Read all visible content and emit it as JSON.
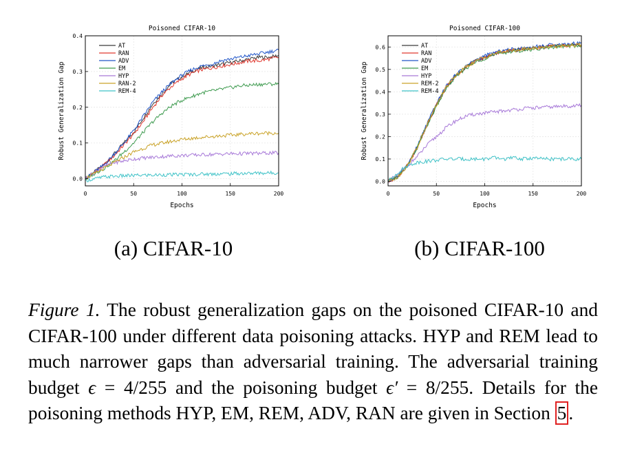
{
  "figure": {
    "subcaption_a": "(a) CIFAR-10",
    "subcaption_b": "(b) CIFAR-100",
    "caption_label": "Figure 1.",
    "caption_text_1": " The robust generalization gaps on the poisoned CIFAR-10 and CIFAR-100 under different data poisoning attacks. HYP and REM lead to much narrower gaps than adversarial training. The adversarial training budget ",
    "eps1": "ϵ",
    "eq1": " = 4/255",
    "caption_text_2": " and the poisoning budget ",
    "eps2": "ϵ′",
    "eq2": " = 8/255",
    "caption_text_3": ". Details for the poisoning methods HYP, EM, REM, ADV, RAN are given in Section ",
    "section_ref": "5",
    "caption_end": "."
  },
  "chart_data": [
    {
      "type": "line",
      "title": "Poisoned CIFAR-10",
      "xlabel": "Epochs",
      "ylabel": "Robust Generalization Gap",
      "xlim": [
        0,
        200
      ],
      "ylim": [
        -0.02,
        0.4
      ],
      "xticks": [
        0,
        50,
        100,
        150,
        200
      ],
      "yticks": [
        0.0,
        0.1,
        0.2,
        0.3,
        0.4
      ],
      "ytick_labels": [
        "0.0",
        "0.1",
        "0.2",
        "0.3",
        "0.4"
      ],
      "grid": true,
      "legend_position": "top-left",
      "series": [
        {
          "name": "AT",
          "color": "#3a3a3a",
          "x": [
            0,
            10,
            20,
            30,
            40,
            50,
            60,
            70,
            80,
            90,
            100,
            110,
            120,
            130,
            140,
            150,
            160,
            170,
            180,
            190,
            200
          ],
          "y": [
            0.0,
            0.02,
            0.04,
            0.07,
            0.1,
            0.13,
            0.17,
            0.21,
            0.24,
            0.27,
            0.285,
            0.3,
            0.31,
            0.315,
            0.32,
            0.325,
            0.33,
            0.335,
            0.34,
            0.34,
            0.345
          ]
        },
        {
          "name": "RAN",
          "color": "#e0382f",
          "x": [
            0,
            10,
            20,
            30,
            40,
            50,
            60,
            70,
            80,
            90,
            100,
            110,
            120,
            130,
            140,
            150,
            160,
            170,
            180,
            190,
            200
          ],
          "y": [
            0.0,
            0.02,
            0.04,
            0.065,
            0.095,
            0.125,
            0.16,
            0.2,
            0.235,
            0.26,
            0.28,
            0.295,
            0.305,
            0.31,
            0.315,
            0.32,
            0.325,
            0.33,
            0.33,
            0.335,
            0.34
          ]
        },
        {
          "name": "ADV",
          "color": "#2055c8",
          "x": [
            0,
            10,
            20,
            30,
            40,
            50,
            60,
            70,
            80,
            90,
            100,
            110,
            120,
            130,
            140,
            150,
            160,
            170,
            180,
            190,
            200
          ],
          "y": [
            0.0,
            0.02,
            0.04,
            0.07,
            0.1,
            0.135,
            0.175,
            0.215,
            0.245,
            0.27,
            0.29,
            0.305,
            0.315,
            0.32,
            0.33,
            0.335,
            0.34,
            0.345,
            0.35,
            0.355,
            0.36
          ]
        },
        {
          "name": "EM",
          "color": "#3d9a4e",
          "x": [
            0,
            10,
            20,
            30,
            40,
            50,
            60,
            70,
            80,
            90,
            100,
            110,
            120,
            130,
            140,
            150,
            160,
            170,
            180,
            190,
            200
          ],
          "y": [
            0.0,
            0.015,
            0.03,
            0.05,
            0.075,
            0.1,
            0.13,
            0.16,
            0.185,
            0.205,
            0.22,
            0.23,
            0.24,
            0.245,
            0.25,
            0.255,
            0.26,
            0.262,
            0.264,
            0.265,
            0.265
          ]
        },
        {
          "name": "HYP",
          "color": "#a778d8",
          "x": [
            0,
            10,
            20,
            30,
            40,
            50,
            60,
            70,
            80,
            90,
            100,
            110,
            120,
            130,
            140,
            150,
            160,
            170,
            180,
            190,
            200
          ],
          "y": [
            0.0,
            0.02,
            0.035,
            0.045,
            0.05,
            0.055,
            0.058,
            0.06,
            0.062,
            0.064,
            0.065,
            0.066,
            0.067,
            0.068,
            0.069,
            0.07,
            0.07,
            0.071,
            0.071,
            0.072,
            0.072
          ]
        },
        {
          "name": "RAN-2",
          "color": "#c9a227",
          "x": [
            0,
            10,
            20,
            30,
            40,
            50,
            60,
            70,
            80,
            90,
            100,
            110,
            120,
            130,
            140,
            150,
            160,
            170,
            180,
            190,
            200
          ],
          "y": [
            0.0,
            0.015,
            0.03,
            0.045,
            0.06,
            0.075,
            0.085,
            0.095,
            0.1,
            0.105,
            0.11,
            0.113,
            0.116,
            0.118,
            0.12,
            0.122,
            0.124,
            0.126,
            0.127,
            0.128,
            0.128
          ]
        },
        {
          "name": "REM-4",
          "color": "#3fc2c7",
          "x": [
            0,
            10,
            20,
            30,
            40,
            50,
            60,
            70,
            80,
            90,
            100,
            110,
            120,
            130,
            140,
            150,
            160,
            170,
            180,
            190,
            200
          ],
          "y": [
            -0.005,
            0.0,
            0.005,
            0.007,
            0.008,
            0.009,
            0.01,
            0.01,
            0.011,
            0.011,
            0.012,
            0.012,
            0.013,
            0.013,
            0.014,
            0.014,
            0.015,
            0.015,
            0.016,
            0.016,
            0.017
          ]
        }
      ]
    },
    {
      "type": "line",
      "title": "Poisoned CIFAR-100",
      "xlabel": "Epochs",
      "ylabel": "Robust Generalization Gap",
      "xlim": [
        0,
        200
      ],
      "ylim": [
        -0.02,
        0.65
      ],
      "xticks": [
        0,
        50,
        100,
        150,
        200
      ],
      "yticks": [
        0.0,
        0.1,
        0.2,
        0.3,
        0.4,
        0.5,
        0.6
      ],
      "ytick_labels": [
        "0.0",
        "0.1",
        "0.2",
        "0.3",
        "0.4",
        "0.5",
        "0.6"
      ],
      "grid": true,
      "legend_position": "top-left",
      "series": [
        {
          "name": "AT",
          "color": "#3a3a3a",
          "x": [
            0,
            10,
            20,
            30,
            40,
            50,
            60,
            70,
            80,
            90,
            100,
            110,
            120,
            130,
            140,
            150,
            160,
            170,
            180,
            190,
            200
          ],
          "y": [
            0.0,
            0.02,
            0.07,
            0.15,
            0.25,
            0.34,
            0.42,
            0.47,
            0.51,
            0.535,
            0.555,
            0.57,
            0.58,
            0.585,
            0.59,
            0.595,
            0.6,
            0.605,
            0.607,
            0.61,
            0.61
          ]
        },
        {
          "name": "RAN",
          "color": "#e0382f",
          "x": [
            0,
            10,
            20,
            30,
            40,
            50,
            60,
            70,
            80,
            90,
            100,
            110,
            120,
            130,
            140,
            150,
            160,
            170,
            180,
            190,
            200
          ],
          "y": [
            0.0,
            0.02,
            0.07,
            0.15,
            0.25,
            0.34,
            0.42,
            0.47,
            0.51,
            0.535,
            0.555,
            0.57,
            0.58,
            0.585,
            0.59,
            0.595,
            0.6,
            0.603,
            0.606,
            0.608,
            0.61
          ]
        },
        {
          "name": "ADV",
          "color": "#2055c8",
          "x": [
            0,
            10,
            20,
            30,
            40,
            50,
            60,
            70,
            80,
            90,
            100,
            110,
            120,
            130,
            140,
            150,
            160,
            170,
            180,
            190,
            200
          ],
          "y": [
            0.0,
            0.02,
            0.07,
            0.155,
            0.255,
            0.345,
            0.425,
            0.475,
            0.515,
            0.54,
            0.56,
            0.575,
            0.585,
            0.59,
            0.595,
            0.6,
            0.605,
            0.61,
            0.612,
            0.615,
            0.62
          ]
        },
        {
          "name": "EM",
          "color": "#3d9a4e",
          "x": [
            0,
            10,
            20,
            30,
            40,
            50,
            60,
            70,
            80,
            90,
            100,
            110,
            120,
            130,
            140,
            150,
            160,
            170,
            180,
            190,
            200
          ],
          "y": [
            0.0,
            0.02,
            0.07,
            0.15,
            0.245,
            0.335,
            0.415,
            0.465,
            0.505,
            0.53,
            0.55,
            0.565,
            0.575,
            0.58,
            0.585,
            0.59,
            0.595,
            0.6,
            0.603,
            0.605,
            0.605
          ]
        },
        {
          "name": "HYP",
          "color": "#a778d8",
          "x": [
            0,
            10,
            20,
            30,
            40,
            50,
            60,
            70,
            80,
            90,
            100,
            110,
            120,
            130,
            140,
            150,
            160,
            170,
            180,
            190,
            200
          ],
          "y": [
            0.0,
            0.03,
            0.07,
            0.11,
            0.16,
            0.2,
            0.24,
            0.27,
            0.29,
            0.3,
            0.305,
            0.31,
            0.315,
            0.32,
            0.325,
            0.328,
            0.33,
            0.333,
            0.335,
            0.337,
            0.34
          ]
        },
        {
          "name": "REM-2",
          "color": "#c9a227",
          "x": [
            0,
            10,
            20,
            30,
            40,
            50,
            60,
            70,
            80,
            90,
            100,
            110,
            120,
            130,
            140,
            150,
            160,
            170,
            180,
            190,
            200
          ],
          "y": [
            0.0,
            0.02,
            0.07,
            0.15,
            0.25,
            0.34,
            0.42,
            0.47,
            0.51,
            0.535,
            0.555,
            0.57,
            0.58,
            0.585,
            0.59,
            0.595,
            0.6,
            0.603,
            0.606,
            0.608,
            0.61
          ]
        },
        {
          "name": "REM-4",
          "color": "#3fc2c7",
          "x": [
            0,
            10,
            20,
            30,
            40,
            50,
            60,
            70,
            80,
            90,
            100,
            110,
            120,
            130,
            140,
            150,
            160,
            170,
            180,
            190,
            200
          ],
          "y": [
            0.0,
            0.04,
            0.07,
            0.085,
            0.09,
            0.095,
            0.1,
            0.1,
            0.1,
            0.1,
            0.1,
            0.105,
            0.1,
            0.105,
            0.1,
            0.105,
            0.1,
            0.1,
            0.1,
            0.1,
            0.1
          ]
        }
      ]
    }
  ]
}
